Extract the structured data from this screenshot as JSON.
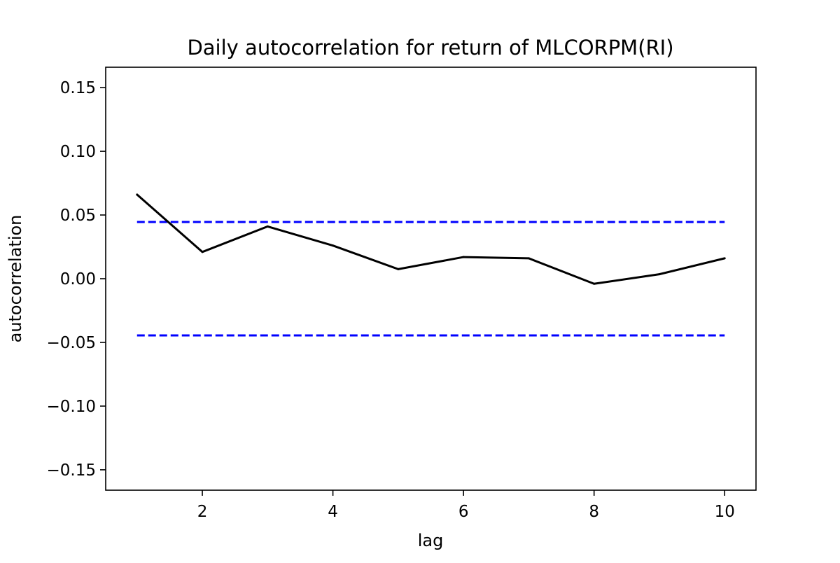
{
  "chart_data": {
    "type": "line",
    "title": "Daily autocorrelation for  return of MLCORPM(RI)",
    "xlabel": "lag",
    "ylabel": "autocorrelation",
    "x": [
      1,
      2,
      3,
      4,
      5,
      6,
      7,
      8,
      9,
      10
    ],
    "series": [
      {
        "values": [
          0.066,
          0.021,
          0.041,
          0.026,
          0.0075,
          0.017,
          0.016,
          -0.004,
          0.0035,
          0.016
        ],
        "color": "#000000",
        "style": "solid"
      }
    ],
    "bands": [
      {
        "y": 0.0445,
        "x_range": [
          1,
          10
        ],
        "color": "#0000ff",
        "style": "dashed"
      },
      {
        "y": -0.0445,
        "x_range": [
          1,
          10
        ],
        "color": "#0000ff",
        "style": "dashed"
      }
    ],
    "xlim": [
      0.52,
      10.48
    ],
    "ylim": [
      -0.166,
      0.166
    ],
    "xticks": [
      2,
      4,
      6,
      8,
      10
    ],
    "xtick_labels": [
      "2",
      "4",
      "6",
      "8",
      "10"
    ],
    "yticks": [
      -0.15,
      -0.1,
      -0.05,
      0.0,
      0.05,
      0.1,
      0.15
    ],
    "ytick_labels": [
      "−0.15",
      "−0.10",
      "−0.05",
      "0.00",
      "0.05",
      "0.10",
      "0.15"
    ],
    "grid": false,
    "legend": "none"
  }
}
